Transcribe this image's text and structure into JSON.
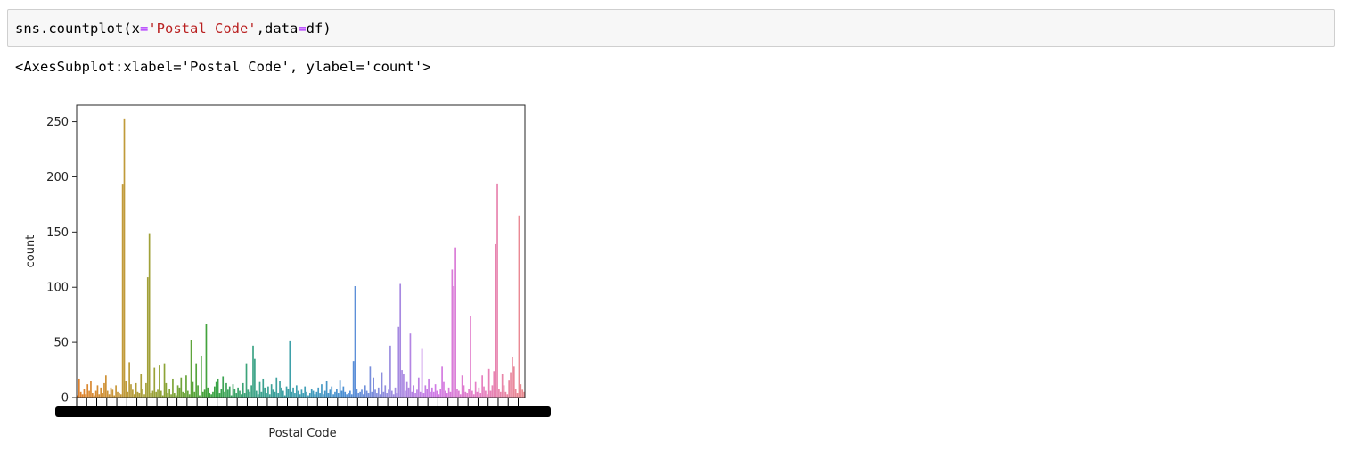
{
  "code_cell": {
    "fn": "sns.countplot(x",
    "eq1": "=",
    "arg_str": "'Postal Code'",
    "comma": ",data",
    "eq2": "=",
    "data_name": "df)"
  },
  "output_text": "<AxesSubplot:xlabel='Postal Code', ylabel='count'>",
  "chart_data": {
    "type": "bar",
    "xlabel": "Postal Code",
    "ylabel": "count",
    "ylim": [
      0,
      265
    ],
    "yticks": [
      0,
      50,
      100,
      150,
      200,
      250
    ],
    "grid": false,
    "legend": "none",
    "palette": [
      "#e1812c",
      "#c39a3a",
      "#8aa537",
      "#3aa33e",
      "#3ca38a",
      "#3e9fb3",
      "#4c8fd6",
      "#9b8ee0",
      "#d07ae6",
      "#e67fc4",
      "#ea8a8e"
    ],
    "categories_estimated_count": 631,
    "values": [
      2,
      17,
      5,
      3,
      8,
      3,
      12,
      6,
      15,
      4,
      2,
      6,
      11,
      3,
      9,
      4,
      13,
      20,
      6,
      3,
      9,
      7,
      2,
      11,
      5,
      4,
      3,
      193,
      253,
      15,
      5,
      32,
      12,
      7,
      3,
      13,
      5,
      4,
      21,
      8,
      3,
      13,
      109,
      149,
      4,
      6,
      27,
      5,
      7,
      29,
      6,
      2,
      31,
      13,
      4,
      8,
      3,
      17,
      4,
      2,
      11,
      9,
      18,
      5,
      4,
      20,
      6,
      3,
      52,
      14,
      5,
      31,
      11,
      2,
      38,
      5,
      7,
      67,
      9,
      4,
      3,
      5,
      10,
      14,
      17,
      4,
      8,
      19,
      5,
      13,
      7,
      10,
      2,
      12,
      8,
      4,
      9,
      6,
      3,
      13,
      4,
      31,
      7,
      5,
      11,
      47,
      35,
      6,
      3,
      14,
      5,
      17,
      9,
      4,
      10,
      3,
      12,
      7,
      5,
      18,
      4,
      15,
      9,
      6,
      2,
      10,
      8,
      51,
      5,
      9,
      4,
      11,
      6,
      3,
      7,
      4,
      10,
      5,
      2,
      4,
      8,
      6,
      3,
      5,
      9,
      4,
      12,
      3,
      6,
      15,
      4,
      7,
      10,
      3,
      5,
      8,
      4,
      16,
      6,
      10,
      5,
      3,
      4,
      6,
      3,
      33,
      101,
      8,
      4,
      5,
      7,
      3,
      11,
      6,
      4,
      28,
      5,
      18,
      7,
      4,
      9,
      3,
      23,
      5,
      11,
      4,
      7,
      47,
      6,
      3,
      9,
      4,
      64,
      103,
      25,
      21,
      6,
      14,
      9,
      58,
      5,
      11,
      4,
      7,
      18,
      5,
      44,
      4,
      11,
      8,
      17,
      5,
      9,
      5,
      12,
      6,
      3,
      8,
      28,
      14,
      6,
      4,
      9,
      5,
      116,
      101,
      136,
      8,
      6,
      3,
      20,
      11,
      5,
      4,
      8,
      74,
      6,
      3,
      14,
      5,
      9,
      4,
      20,
      10,
      6,
      3,
      26,
      6,
      11,
      24,
      139,
      194,
      8,
      5,
      21,
      11,
      5,
      3,
      16,
      23,
      37,
      28,
      8,
      4,
      165,
      12,
      7,
      5
    ],
    "annotation": "Tick labels along the x axis overlap into a solid black band (hundreds of postal-code categories)."
  }
}
